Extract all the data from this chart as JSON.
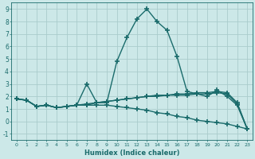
{
  "xlabel": "Humidex (Indice chaleur)",
  "xlim": [
    -0.5,
    23.5
  ],
  "ylim": [
    -1.5,
    9.5
  ],
  "yticks": [
    -1,
    0,
    1,
    2,
    3,
    4,
    5,
    6,
    7,
    8,
    9
  ],
  "xticks": [
    0,
    1,
    2,
    3,
    4,
    5,
    6,
    7,
    8,
    9,
    10,
    11,
    12,
    13,
    14,
    15,
    16,
    17,
    18,
    19,
    20,
    21,
    22,
    23
  ],
  "background_color": "#cce8e8",
  "grid_color": "#aacccc",
  "line_color": "#1a6b6b",
  "line_width": 1.0,
  "marker": "+",
  "markersize": 4,
  "markeredgewidth": 1.2,
  "series": [
    [
      1.8,
      1.7,
      1.2,
      1.3,
      1.1,
      1.2,
      1.3,
      1.3,
      1.5,
      1.5,
      4.8,
      6.7,
      8.2,
      9.0,
      8.0,
      7.3,
      5.2,
      2.4,
      2.2,
      2.0,
      2.5,
      2.0,
      1.3,
      -0.6
    ],
    [
      1.8,
      1.7,
      1.2,
      1.3,
      1.1,
      1.2,
      1.3,
      3.0,
      1.5,
      1.6,
      1.7,
      1.8,
      1.9,
      2.0,
      2.1,
      2.1,
      2.2,
      2.2,
      2.3,
      2.3,
      2.4,
      2.3,
      1.5,
      -0.6
    ],
    [
      1.8,
      1.7,
      1.2,
      1.3,
      1.1,
      1.2,
      1.3,
      1.4,
      1.5,
      1.6,
      1.7,
      1.8,
      1.9,
      2.0,
      2.0,
      2.1,
      2.1,
      2.1,
      2.2,
      2.2,
      2.3,
      2.2,
      1.4,
      -0.6
    ],
    [
      1.8,
      1.7,
      1.2,
      1.3,
      1.1,
      1.2,
      1.3,
      1.3,
      1.3,
      1.3,
      1.2,
      1.1,
      1.0,
      0.9,
      0.7,
      0.6,
      0.4,
      0.3,
      0.1,
      0.0,
      -0.1,
      -0.2,
      -0.4,
      -0.6
    ]
  ]
}
